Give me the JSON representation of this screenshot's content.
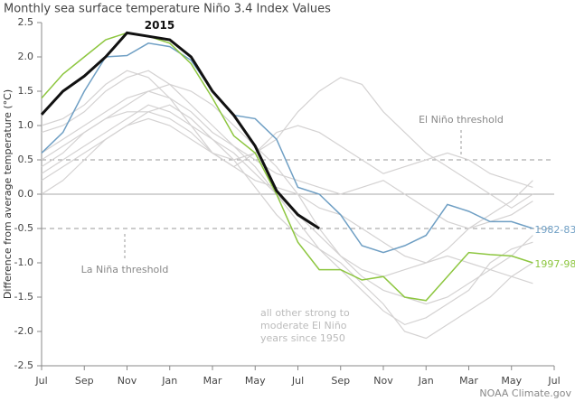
{
  "chart_data": {
    "type": "line",
    "title": "Monthly sea surface temperature Niño 3.4 Index Values",
    "y_label": "Difference from average temperature (°C)",
    "credit": "NOAA Climate.gov",
    "annotation_lines": [
      "all other strong to",
      "moderate El Niño",
      "years since 1950"
    ],
    "thresholds": [
      {
        "value": 0.5,
        "label": "El Niño threshold"
      },
      {
        "value": -0.5,
        "label": "La Niña threshold"
      }
    ],
    "x": [
      0,
      1,
      2,
      3,
      4,
      5,
      6,
      7,
      8,
      9,
      10,
      11,
      12,
      13,
      14,
      15,
      16,
      17,
      18,
      19,
      20,
      21,
      22,
      23
    ],
    "xlim": [
      0,
      24
    ],
    "xticks": [
      {
        "value": 0,
        "label": "Jul"
      },
      {
        "value": 2,
        "label": "Sep"
      },
      {
        "value": 4,
        "label": "Nov"
      },
      {
        "value": 6,
        "label": "Jan"
      },
      {
        "value": 8,
        "label": "Mar"
      },
      {
        "value": 10,
        "label": "May"
      },
      {
        "value": 12,
        "label": "Jul"
      },
      {
        "value": 14,
        "label": "Sep"
      },
      {
        "value": 16,
        "label": "Nov"
      },
      {
        "value": 18,
        "label": "Jan"
      },
      {
        "value": 20,
        "label": "Mar"
      },
      {
        "value": 22,
        "label": "May"
      },
      {
        "value": 24,
        "label": "Jul"
      }
    ],
    "ylim": [
      -2.5,
      2.5
    ],
    "yticks": [
      {
        "value": -2.5,
        "label": "-2.5"
      },
      {
        "value": -2,
        "label": "-2.0"
      },
      {
        "value": -1.5,
        "label": "-1.5"
      },
      {
        "value": -1,
        "label": "-1.0"
      },
      {
        "value": -0.5,
        "label": "-0.5"
      },
      {
        "value": 0,
        "label": "0.0"
      },
      {
        "value": 0.5,
        "label": "0.5"
      },
      {
        "value": 1,
        "label": "1.0"
      },
      {
        "value": 1.5,
        "label": "1.5"
      },
      {
        "value": 2,
        "label": "2.0"
      },
      {
        "value": 2.5,
        "label": "2.5"
      }
    ],
    "other_color": "#d4d2d2",
    "other_series": [
      [
        0.3,
        0.5,
        0.7,
        0.9,
        1.1,
        1.3,
        1.2,
        1.0,
        0.8,
        0.6,
        0.3,
        0.0,
        -0.3,
        -0.6,
        -0.9,
        -1.2,
        -1.4,
        -1.5,
        -1.6,
        -1.5,
        -1.3,
        -1.1,
        -0.9,
        -0.6
      ],
      [
        0.9,
        1.0,
        1.2,
        1.5,
        1.7,
        1.8,
        1.6,
        1.3,
        1.0,
        0.7,
        0.4,
        0.0,
        -0.4,
        -0.8,
        -1.1,
        -1.4,
        -1.7,
        -1.9,
        -1.8,
        -1.6,
        -1.4,
        -1.0,
        -0.8,
        -0.7
      ],
      [
        0.2,
        0.4,
        0.6,
        0.8,
        1.0,
        1.1,
        1.0,
        0.8,
        0.6,
        0.5,
        0.6,
        0.8,
        1.2,
        1.5,
        1.7,
        1.6,
        1.2,
        0.9,
        0.6,
        0.4,
        0.2,
        0.0,
        -0.2,
        0.0
      ],
      [
        0.5,
        0.7,
        0.9,
        1.1,
        1.2,
        1.2,
        1.1,
        0.9,
        0.6,
        0.4,
        0.2,
        0.1,
        0.0,
        -0.2,
        -0.3,
        -0.5,
        -0.7,
        -0.9,
        -1.0,
        -0.8,
        -0.5,
        -0.3,
        -0.1,
        0.2
      ],
      [
        1.0,
        1.1,
        1.3,
        1.6,
        1.8,
        1.7,
        1.4,
        1.0,
        0.6,
        0.4,
        0.6,
        0.9,
        1.0,
        0.9,
        0.7,
        0.5,
        0.3,
        0.4,
        0.5,
        0.6,
        0.5,
        0.3,
        0.2,
        0.1
      ],
      [
        0.0,
        0.2,
        0.5,
        0.8,
        1.0,
        1.2,
        1.3,
        1.1,
        0.8,
        0.5,
        0.1,
        -0.3,
        -0.6,
        -0.8,
        -1.0,
        -1.3,
        -1.6,
        -2.0,
        -2.1,
        -1.9,
        -1.7,
        -1.5,
        -1.2,
        -1.0
      ],
      [
        0.6,
        0.8,
        1.0,
        1.2,
        1.4,
        1.5,
        1.4,
        1.2,
        0.9,
        0.7,
        0.5,
        0.3,
        0.2,
        0.1,
        0.0,
        0.1,
        0.2,
        0.0,
        -0.2,
        -0.4,
        -0.5,
        -0.4,
        -0.3,
        -0.1
      ],
      [
        0.4,
        0.6,
        0.9,
        1.1,
        1.3,
        1.5,
        1.6,
        1.5,
        1.3,
        1.0,
        0.7,
        0.4,
        0.0,
        -0.5,
        -0.9,
        -1.1,
        -1.2,
        -1.1,
        -1.0,
        -0.9,
        -1.0,
        -1.1,
        -1.2,
        -1.3
      ]
    ],
    "series": [
      {
        "name": "1982-83",
        "color": "#6f9fc4",
        "values": [
          0.6,
          0.9,
          1.5,
          2.0,
          2.02,
          2.2,
          2.15,
          1.95,
          1.5,
          1.15,
          1.1,
          0.8,
          0.1,
          0.0,
          -0.3,
          -0.75,
          -0.85,
          -0.75,
          -0.6,
          -0.15,
          -0.25,
          -0.4,
          -0.4,
          -0.5
        ]
      },
      {
        "name": "1997-98",
        "color": "#8dc63f",
        "values": [
          1.4,
          1.75,
          2.0,
          2.25,
          2.35,
          2.3,
          2.2,
          1.9,
          1.4,
          0.85,
          0.6,
          0.0,
          -0.7,
          -1.1,
          -1.1,
          -1.25,
          -1.2,
          -1.5,
          -1.55,
          -1.2,
          -0.85,
          -0.88,
          -0.9,
          -1.0
        ]
      },
      {
        "name": "2015",
        "color": "#111111",
        "values": [
          1.16,
          1.5,
          1.72,
          2.0,
          2.35,
          2.3,
          2.25,
          2.0,
          1.5,
          1.15,
          0.7,
          0.05,
          -0.3,
          -0.5,
          null,
          null,
          null,
          null,
          null,
          null,
          null,
          null,
          null,
          null
        ]
      }
    ]
  }
}
